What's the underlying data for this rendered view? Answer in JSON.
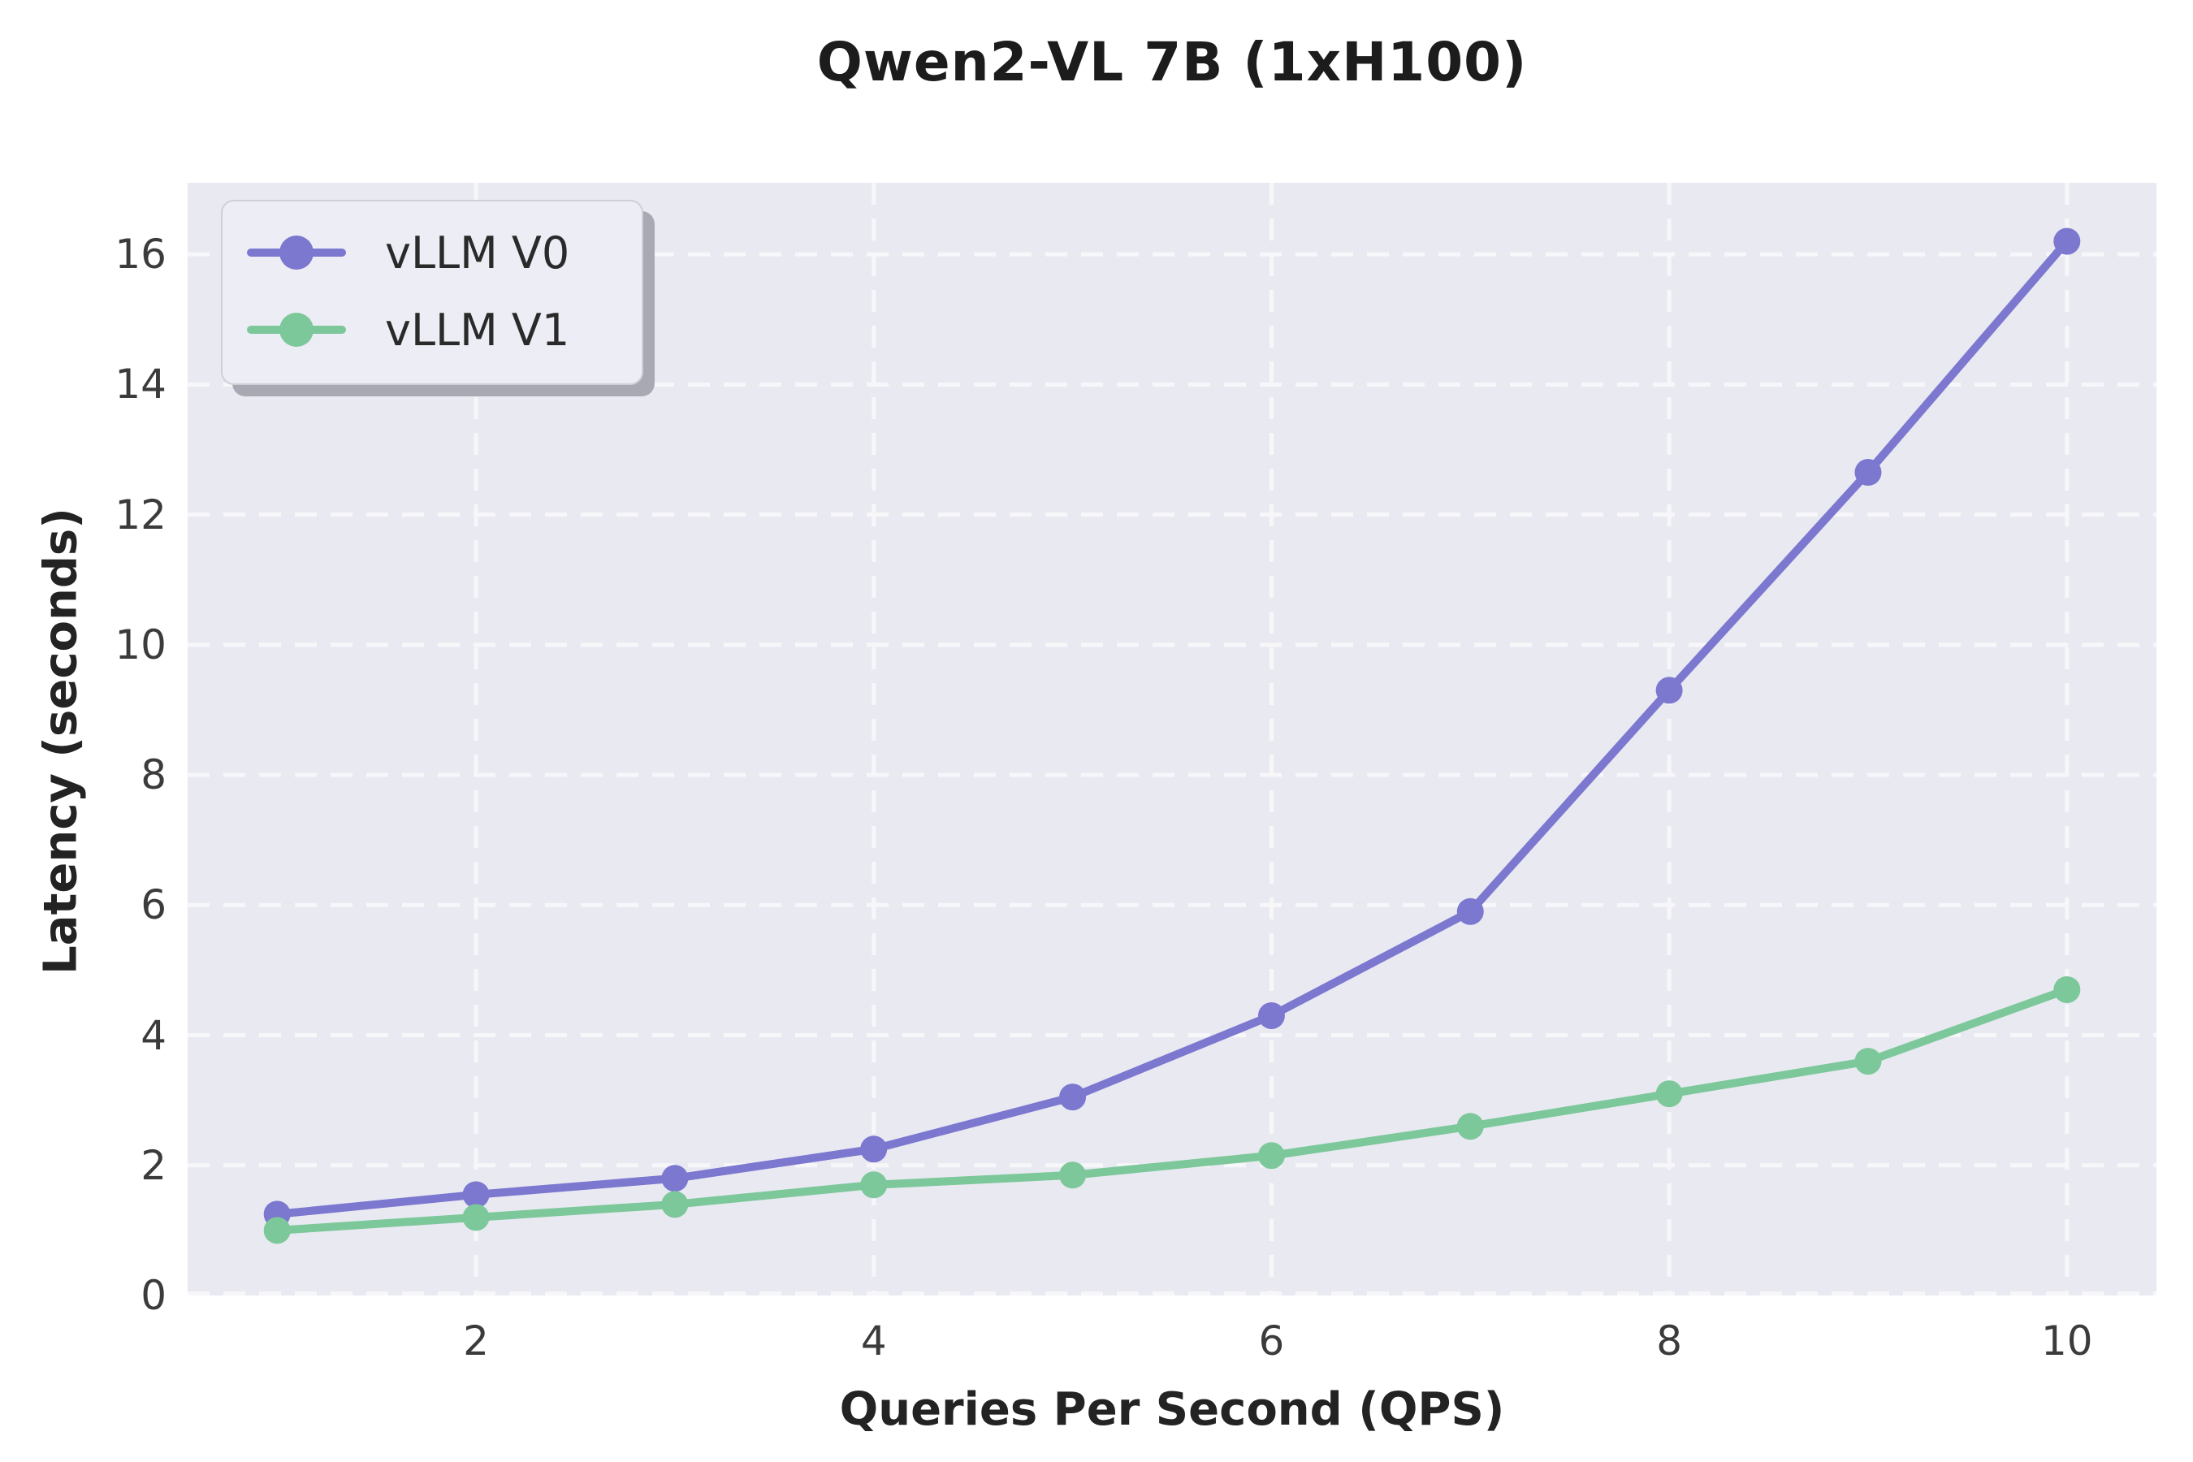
{
  "chart_data": {
    "type": "line",
    "title": "Qwen2-VL 7B (1xH100)",
    "xlabel": "Queries Per Second (QPS)",
    "ylabel": "Latency (seconds)",
    "x": [
      1,
      2,
      3,
      4,
      5,
      6,
      7,
      8,
      9,
      10
    ],
    "series": [
      {
        "name": "vLLM V0",
        "color": "#7c77cf",
        "values": [
          1.25,
          1.55,
          1.8,
          2.25,
          3.05,
          4.3,
          5.9,
          9.3,
          12.65,
          16.2
        ]
      },
      {
        "name": "vLLM V1",
        "color": "#7cc89a",
        "values": [
          1.0,
          1.2,
          1.4,
          1.7,
          1.85,
          2.15,
          2.6,
          3.1,
          3.6,
          4.7
        ]
      }
    ],
    "xlim": [
      0.55,
      10.45
    ],
    "ylim": [
      0,
      17.1
    ],
    "x_ticks": [
      2,
      4,
      6,
      8,
      10
    ],
    "y_ticks": [
      0,
      2,
      4,
      6,
      8,
      10,
      12,
      14,
      16
    ],
    "grid": true,
    "legend_position": "upper left",
    "plot_bg": "#e9e9f2",
    "grid_color": "#f7f7fa",
    "marker": "circle",
    "marker_radius": 16.5,
    "line_width": 10
  }
}
